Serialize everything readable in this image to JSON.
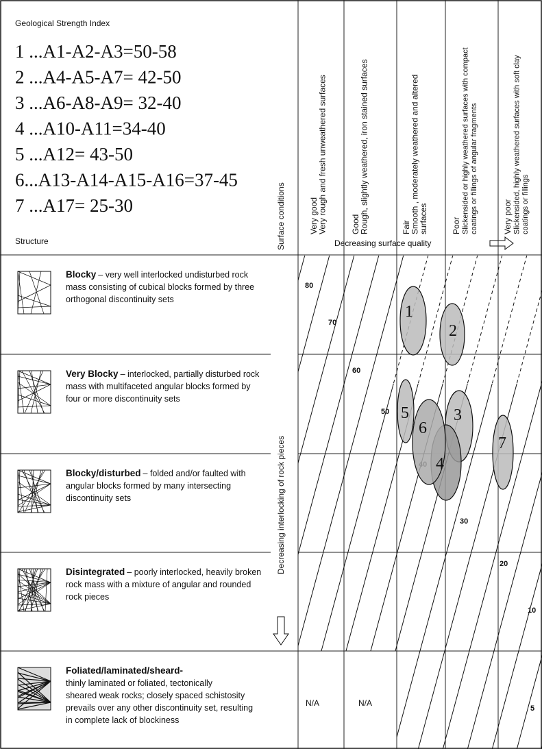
{
  "header": {
    "title": "Geological Strength Index",
    "items": [
      "1 ...A1-A2-A3=50-58",
      "2 ...A4-A5-A7= 42-50",
      "3 ...A6-A8-A9= 32-40",
      "4 ...A10-A11=34-40",
      "5 ...A12= 43-50",
      "6...A13-A14-A15-A16=37-45",
      "7 ...A17= 25-30"
    ],
    "structure_label": "Structure",
    "surface_conditions_label": "Surface conditions",
    "surface_quality_label": "Decreasing surface quality"
  },
  "columns": [
    {
      "lines": [
        "Very good",
        "Very rough and fresh unweathered surfaces"
      ]
    },
    {
      "lines": [
        "Good",
        "Rough, slightly weathered, iron stained surfaces"
      ]
    },
    {
      "lines": [
        "Fair",
        "Smooth , moderately weathered and altered",
        "surfaces"
      ]
    },
    {
      "lines": [
        "Poor",
        "Slickensided or highly weathered surfaces with compact",
        "coatings or fillings of angular fragments"
      ]
    },
    {
      "lines": [
        "Very poor",
        "Slickensided, highly weathered surfaces with soft clay",
        "coatings or fillings"
      ]
    }
  ],
  "rows": [
    {
      "name": "Blocky",
      "lines": [
        "– very well interlocked undisturbed rock",
        "mass consisting of cubical blocks formed by three",
        "orthogonal discontinuity sets"
      ]
    },
    {
      "name": "Very Blocky",
      "lines": [
        "– interlocked, partially disturbed rock",
        "mass with multifaceted angular blocks formed by",
        "four or more discontinuity sets"
      ]
    },
    {
      "name": "Blocky/disturbed",
      "lines": [
        "– folded and/or faulted with",
        "angular blocks formed by many intersecting",
        "discontinuity sets"
      ]
    },
    {
      "name": "Disintegrated",
      "lines": [
        "– poorly interlocked, heavily broken",
        "rock mass with a mixture of angular and rounded",
        "rock pieces"
      ]
    },
    {
      "name": "Foliated/laminated/sheard-",
      "lines": [
        "thinly laminated or foliated, tectonically",
        "sheared weak rocks; closely spaced schistosity",
        "prevails over any other discontinuity set, resulting",
        "in complete lack of blockiness"
      ]
    }
  ],
  "interlocking_label": "Decreasing interlocking of rock pieces",
  "contours": [
    "80",
    "70",
    "60",
    "50",
    "40",
    "30",
    "20",
    "10",
    "5"
  ],
  "ellipses": [
    "1",
    "2",
    "3",
    "4",
    "5",
    "6",
    "7"
  ],
  "na_labels": [
    "N/A",
    "N/A"
  ]
}
